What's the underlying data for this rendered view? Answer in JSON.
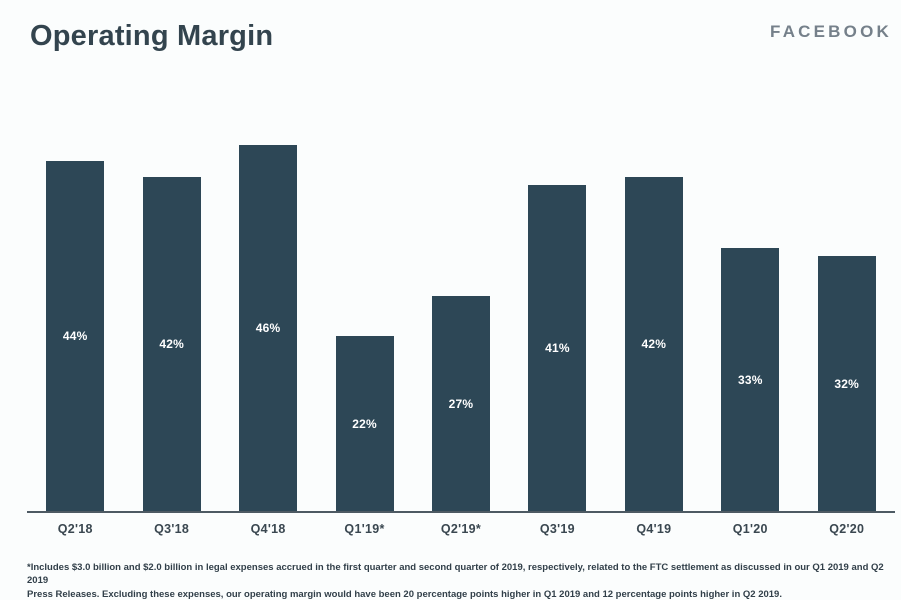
{
  "page": {
    "background": "#fbfdfd"
  },
  "header": {
    "title": "Operating Margin",
    "brand": "FACEBOOK",
    "title_color": "#33444e",
    "brand_color": "#75808a"
  },
  "chart_data": {
    "type": "bar",
    "title": "Operating Margin",
    "categories": [
      "Q2'18",
      "Q3'18",
      "Q4'18",
      "Q1'19*",
      "Q2'19*",
      "Q3'19",
      "Q4'19",
      "Q1'20",
      "Q2'20"
    ],
    "values": [
      44,
      42,
      46,
      22,
      27,
      41,
      42,
      33,
      32
    ],
    "value_labels": [
      "44%",
      "42%",
      "46%",
      "22%",
      "27%",
      "41%",
      "42%",
      "33%",
      "32%"
    ],
    "xlabel": "",
    "ylabel": "",
    "ylim": [
      0,
      48
    ],
    "grid": false,
    "legend_position": "none",
    "bar_color": "#2d4756",
    "value_label_color": "#ffffff",
    "axis_line_color": "#4d5a63"
  },
  "footnote": {
    "line1": "*Includes $3.0 billion and $2.0 billion in legal expenses accrued in the first quarter and second quarter of 2019, respectively, related to the FTC settlement as discussed in our Q1 2019 and Q2 2019",
    "line2": "Press Releases. Excluding these expenses, our operating margin would have been 20 percentage points higher in Q1 2019 and 12 percentage points higher in Q2 2019."
  }
}
